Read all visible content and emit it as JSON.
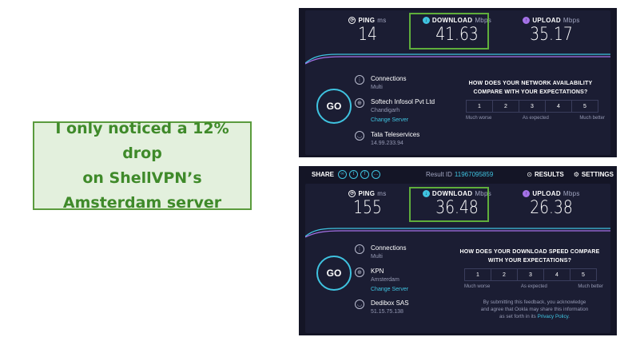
{
  "callout": {
    "lines": [
      "I only noticed a 12% drop",
      "on ShellVPN’s",
      "Amsterdam server"
    ]
  },
  "colors": {
    "panel_bg": "#141526",
    "download_accent": "#3fc3e0",
    "upload_accent": "#a572e8",
    "highlight_green": "#5fae3b",
    "callout_text": "#3f8a2a"
  },
  "top_test": {
    "ping": {
      "label": "PING",
      "unit": "ms",
      "value": "14"
    },
    "download": {
      "label": "DOWNLOAD",
      "unit": "Mbps",
      "value": "41.63"
    },
    "upload": {
      "label": "UPLOAD",
      "unit": "Mbps",
      "value": "35.17"
    },
    "go_label": "GO",
    "connections": {
      "title": "Connections",
      "sub": "Multi"
    },
    "server": {
      "title": "Softech Infosol Pvt Ltd",
      "sub": "Chandigarh",
      "link": "Change Server"
    },
    "provider": {
      "title": "Tata Teleservices",
      "sub": "14.99.233.94"
    },
    "question": {
      "line1": "HOW DOES YOUR NETWORK AVAILABILITY",
      "line2": "COMPARE WITH YOUR EXPECTATIONS?"
    },
    "scale": [
      "1",
      "2",
      "3",
      "4",
      "5"
    ],
    "scale_labels": {
      "low": "Much worse",
      "mid": "As expected",
      "high": "Much better"
    }
  },
  "bottom_test": {
    "share_label": "SHARE",
    "result_id_label": "Result ID",
    "result_id": "11967095859",
    "results_label": "RESULTS",
    "settings_label": "SETTINGS",
    "ping": {
      "label": "PING",
      "unit": "ms",
      "value": "155"
    },
    "download": {
      "label": "DOWNLOAD",
      "unit": "Mbps",
      "value": "36.48"
    },
    "upload": {
      "label": "UPLOAD",
      "unit": "Mbps",
      "value": "26.38"
    },
    "go_label": "GO",
    "connections": {
      "title": "Connections",
      "sub": "Multi"
    },
    "server": {
      "title": "KPN",
      "sub": "Amsterdam",
      "link": "Change Server"
    },
    "provider": {
      "title": "Dedibox SAS",
      "sub": "51.15.75.138"
    },
    "question": {
      "line1": "HOW DOES YOUR DOWNLOAD SPEED COMPARE",
      "line2": "WITH YOUR EXPECTATIONS?"
    },
    "scale": [
      "1",
      "2",
      "3",
      "4",
      "5"
    ],
    "scale_labels": {
      "low": "Much worse",
      "mid": "As expected",
      "high": "Much better"
    },
    "feedback": {
      "line1": "By submitting this feedback, you acknowledge",
      "line2": "and agree that Ookla may share this information",
      "line3_prefix": "as set forth in its",
      "line3_link": "Privacy Policy",
      "line3_suffix": "."
    }
  }
}
